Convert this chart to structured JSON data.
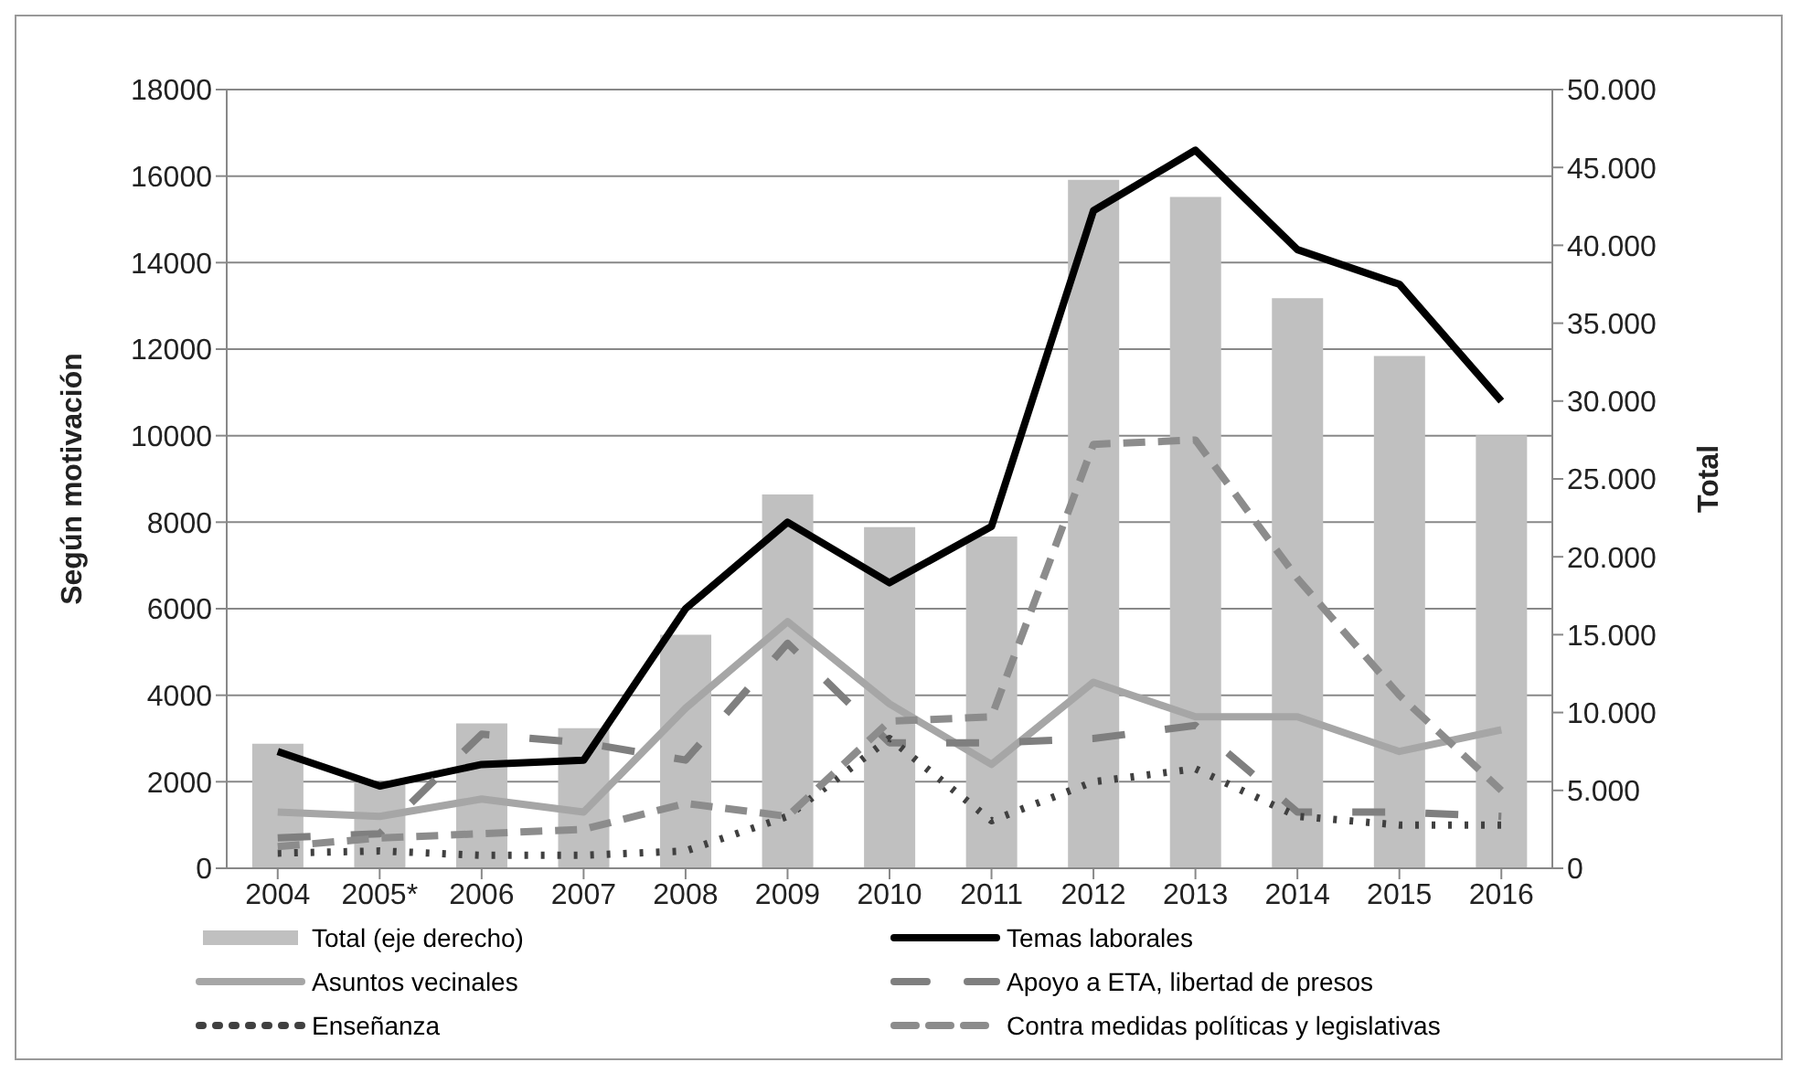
{
  "chart_data": {
    "type": "line",
    "categories": [
      "2004",
      "2005*",
      "2006",
      "2007",
      "2008",
      "2009",
      "2010",
      "2011",
      "2012",
      "2013",
      "2014",
      "2015",
      "2016"
    ],
    "ylabel": "Según motivación",
    "y2label": "Total",
    "ylim": [
      0,
      18000
    ],
    "yticks": [
      0,
      2000,
      4000,
      6000,
      8000,
      10000,
      12000,
      14000,
      16000,
      18000
    ],
    "y2lim": [
      0,
      50000
    ],
    "y2ticks": [
      {
        "value": 0,
        "label": "0"
      },
      {
        "value": 5000,
        "label": "5.000"
      },
      {
        "value": 10000,
        "label": "10.000"
      },
      {
        "value": 15000,
        "label": "15.000"
      },
      {
        "value": 20000,
        "label": "20.000"
      },
      {
        "value": 25000,
        "label": "25.000"
      },
      {
        "value": 30000,
        "label": "30.000"
      },
      {
        "value": 35000,
        "label": "35.000"
      },
      {
        "value": 40000,
        "label": "40.000"
      },
      {
        "value": 45000,
        "label": "45.000"
      },
      {
        "value": 50000,
        "label": "50.000"
      }
    ],
    "grid": "y",
    "legend": "bottom",
    "marker": "none",
    "series": [
      {
        "name": "Total (eje derecho)",
        "type": "bar",
        "axis": "y2",
        "color": "#c0c0c0",
        "values": [
          8000,
          5500,
          9300,
          9000,
          15000,
          24000,
          21900,
          21300,
          44200,
          43100,
          36600,
          32900,
          27800
        ]
      },
      {
        "name": "Temas laborales",
        "color": "#000000",
        "line_style": "solid",
        "values": [
          2700,
          1900,
          2400,
          2500,
          6000,
          8000,
          6600,
          7900,
          15200,
          16600,
          14300,
          13500,
          10800
        ]
      },
      {
        "name": "Asuntos vecinales",
        "color": "#a6a6a6",
        "line_style": "solid",
        "values": [
          1300,
          1200,
          1600,
          1300,
          3700,
          5700,
          3800,
          2400,
          4300,
          3500,
          3500,
          2700,
          3200
        ]
      },
      {
        "name": "Apoyo a ETA, libertad de presos",
        "color": "#7f7f7f",
        "line_style": "longdash",
        "values": [
          700,
          800,
          3100,
          2900,
          2500,
          5200,
          2900,
          2900,
          3000,
          3300,
          1300,
          1300,
          1200
        ]
      },
      {
        "name": "Enseñanza",
        "color": "#404040",
        "line_style": "dotted",
        "values": [
          350,
          400,
          300,
          300,
          400,
          1200,
          3000,
          1100,
          2000,
          2300,
          1200,
          1000,
          1000
        ]
      },
      {
        "name": "Contra medidas políticas y legislativas",
        "color": "#8c8c8c",
        "line_style": "dashed",
        "values": [
          500,
          700,
          800,
          900,
          1500,
          1200,
          3400,
          3500,
          9800,
          9900,
          6700,
          4000,
          1800
        ]
      }
    ]
  }
}
